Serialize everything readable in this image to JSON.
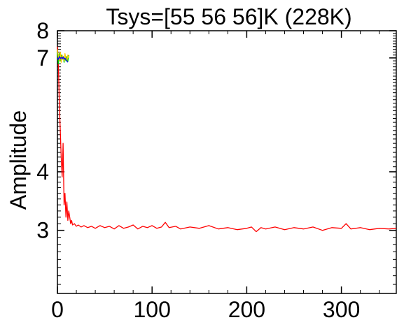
{
  "chart_data": {
    "type": "line",
    "title": "Tsys=[55 56 56]K (228K)",
    "xlabel": "",
    "ylabel": "Amplitude",
    "xlim": [
      0,
      358
    ],
    "ylim": [
      2.2,
      8
    ],
    "yscale": "log",
    "x_ticks": [
      0,
      100,
      200,
      300
    ],
    "x_tick_labels": [
      "0",
      "100",
      "200",
      "300"
    ],
    "y_ticks": [
      3,
      4,
      7,
      8
    ],
    "y_tick_labels": [
      "3",
      "4",
      "7",
      "8"
    ],
    "grid": false,
    "legend": "none",
    "series": [
      {
        "color": "#ff0000",
        "x": [
          0,
          1,
          2,
          3,
          4,
          5,
          6,
          7,
          8,
          9,
          10,
          11,
          12,
          13,
          14,
          15,
          16,
          18,
          20,
          22,
          25,
          28,
          32,
          36,
          40,
          45,
          50,
          55,
          60,
          65,
          70,
          75,
          80,
          85,
          90,
          95,
          100,
          105,
          110,
          114,
          118,
          125,
          130,
          140,
          150,
          160,
          170,
          180,
          190,
          200,
          205,
          210,
          215,
          220,
          230,
          240,
          250,
          260,
          270,
          280,
          290,
          300,
          305,
          310,
          320,
          330,
          340,
          350,
          358
        ],
        "y": [
          7.4,
          6.8,
          5.6,
          4.9,
          4.3,
          3.9,
          4.6,
          3.4,
          3.6,
          3.2,
          3.45,
          3.15,
          3.3,
          3.2,
          3.1,
          3.15,
          3.08,
          3.1,
          3.06,
          3.08,
          3.05,
          3.07,
          3.04,
          3.06,
          3.03,
          3.07,
          3.04,
          3.06,
          3.02,
          3.07,
          3.03,
          3.05,
          3.08,
          3.02,
          3.06,
          3.04,
          3.07,
          3.03,
          3.05,
          3.12,
          3.04,
          3.06,
          3.02,
          3.05,
          3.03,
          3.07,
          3.02,
          3.04,
          3.01,
          3.03,
          3.05,
          2.98,
          3.04,
          3.02,
          3.05,
          3.01,
          3.04,
          3.02,
          3.05,
          3.0,
          3.04,
          3.03,
          3.1,
          3.02,
          3.04,
          3.01,
          3.03,
          3.02,
          3.03
        ]
      },
      {
        "color": "#00cc00",
        "x": [
          0,
          1,
          2,
          3,
          4,
          5,
          6,
          7,
          8,
          9,
          10,
          11,
          12
        ],
        "y": [
          7.2,
          6.8,
          7.15,
          6.9,
          7.1,
          6.95,
          7.05,
          6.85,
          7.0,
          6.9,
          7.05,
          6.88,
          7.1
        ]
      },
      {
        "color": "#ffcc00",
        "x": [
          0,
          1,
          2,
          3,
          4,
          5,
          6,
          7,
          8,
          9,
          10,
          11,
          12
        ],
        "y": [
          7.3,
          7.05,
          6.9,
          7.2,
          6.85,
          7.1,
          7.0,
          6.9,
          7.15,
          6.95,
          6.9,
          7.1,
          7.0
        ]
      },
      {
        "color": "#0000ff",
        "x": [
          0,
          1,
          2,
          3,
          4,
          5,
          6,
          7,
          8,
          9,
          10,
          11
        ],
        "y": [
          7.0,
          6.95,
          7.05,
          6.98,
          7.02,
          6.97,
          7.03,
          6.96,
          6.99,
          6.94,
          6.9,
          6.85
        ]
      }
    ]
  }
}
